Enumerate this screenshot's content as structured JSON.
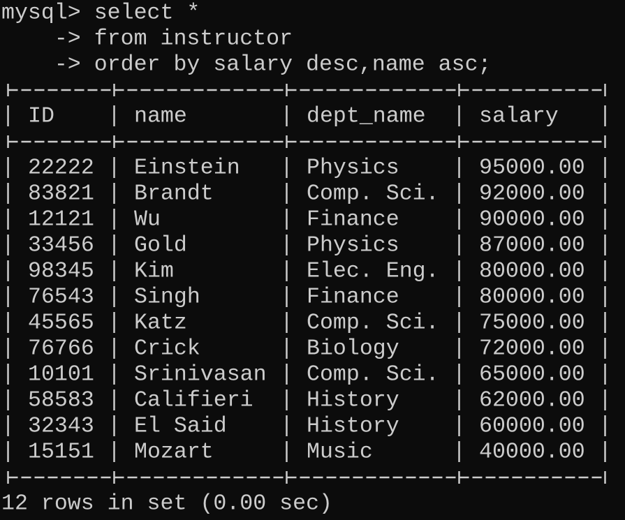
{
  "terminal": {
    "prompt_lines": [
      "mysql> select *",
      "    -> from instructor",
      "    -> order by salary desc,name asc;"
    ],
    "table": {
      "header": [
        "ID",
        "name",
        "dept_name",
        "salary"
      ],
      "rows": [
        [
          "22222",
          "Einstein",
          "Physics",
          "95000.00"
        ],
        [
          "83821",
          "Brandt",
          "Comp. Sci.",
          "92000.00"
        ],
        [
          "12121",
          "Wu",
          "Finance",
          "90000.00"
        ],
        [
          "33456",
          "Gold",
          "Physics",
          "87000.00"
        ],
        [
          "98345",
          "Kim",
          "Elec. Eng.",
          "80000.00"
        ],
        [
          "76543",
          "Singh",
          "Finance",
          "80000.00"
        ],
        [
          "45565",
          "Katz",
          "Comp. Sci.",
          "75000.00"
        ],
        [
          "76766",
          "Crick",
          "Biology",
          "72000.00"
        ],
        [
          "10101",
          "Srinivasan",
          "Comp. Sci.",
          "65000.00"
        ],
        [
          "58583",
          "Califieri",
          "History",
          "62000.00"
        ],
        [
          "32343",
          "El Said",
          "History",
          "60000.00"
        ],
        [
          "15151",
          "Mozart",
          "Music",
          "40000.00"
        ]
      ]
    },
    "status": "12 rows in set (0.00 sec)"
  }
}
